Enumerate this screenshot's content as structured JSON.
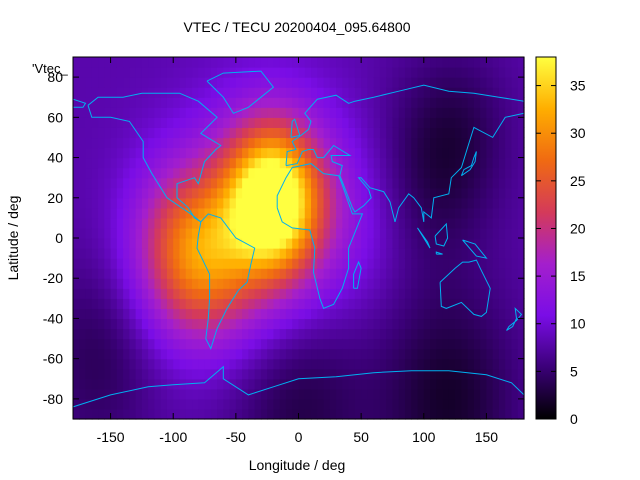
{
  "chart_data": {
    "type": "heatmap",
    "title": "VTEC / TECU 20200404_095.64800",
    "xlabel": "Longitude / deg",
    "ylabel": "Latitude / deg",
    "key_label": "'Vtec_",
    "xlim": [
      -180,
      180
    ],
    "ylim": [
      -90,
      90
    ],
    "x_ticks": [
      -150,
      -100,
      -50,
      0,
      50,
      100,
      150
    ],
    "y_ticks": [
      -80,
      -60,
      -40,
      -20,
      0,
      20,
      40,
      60,
      80
    ],
    "colorbar": {
      "range": [
        0,
        38
      ],
      "ticks": [
        0,
        5,
        10,
        15,
        20,
        25,
        30,
        35
      ],
      "palette": [
        "#000000",
        "#3b0078",
        "#7a0de6",
        "#a41fcc",
        "#d43a5a",
        "#f06a12",
        "#ffae00",
        "#ffff40"
      ]
    },
    "grid": false,
    "overlay": "coastlines",
    "overlay_color": "#00b0f0",
    "field": {
      "background": 8,
      "features": [
        {
          "lon": -20,
          "lat": 19,
          "peak": 28,
          "width": 25
        },
        {
          "lon": -30,
          "lat": 10,
          "peak": 10,
          "width": 40
        },
        {
          "lon": -95,
          "lat": -5,
          "peak": 12,
          "width": 30
        },
        {
          "lon": -70,
          "lat": -12,
          "peak": 10,
          "width": 28
        },
        {
          "lon": 40,
          "lat": 10,
          "peak": 4,
          "width": 35
        },
        {
          "lon": 100,
          "lat": 30,
          "peak": -4,
          "width": 35
        },
        {
          "lon": 130,
          "lat": 55,
          "peak": -3,
          "width": 30
        },
        {
          "lon": 0,
          "lat": -80,
          "peak": -5,
          "width": 40
        },
        {
          "lon": 120,
          "lat": -80,
          "peak": -6,
          "width": 40
        },
        {
          "lon": -160,
          "lat": -60,
          "peak": -4,
          "width": 35
        }
      ]
    }
  }
}
